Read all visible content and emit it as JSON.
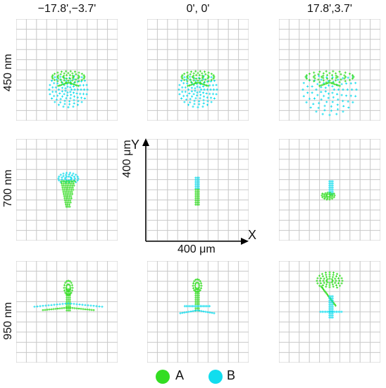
{
  "columns": [
    "−17.8',−3.7'",
    "0', 0'",
    "17.8',3.7'"
  ],
  "rows": [
    "450 nm",
    "700 nm",
    "950 nm"
  ],
  "axes": {
    "y_letter": "Y",
    "x_letter": "X",
    "y_label": "400 μm",
    "x_label": "400 μm"
  },
  "legend": [
    {
      "label": "A",
      "color": "#33dd22"
    },
    {
      "label": "B",
      "color": "#11ddee"
    }
  ],
  "colors": {
    "grid": "#c8c8c8",
    "axis": "#000000",
    "A": "#33dd22",
    "B": "#11ddee"
  }
}
